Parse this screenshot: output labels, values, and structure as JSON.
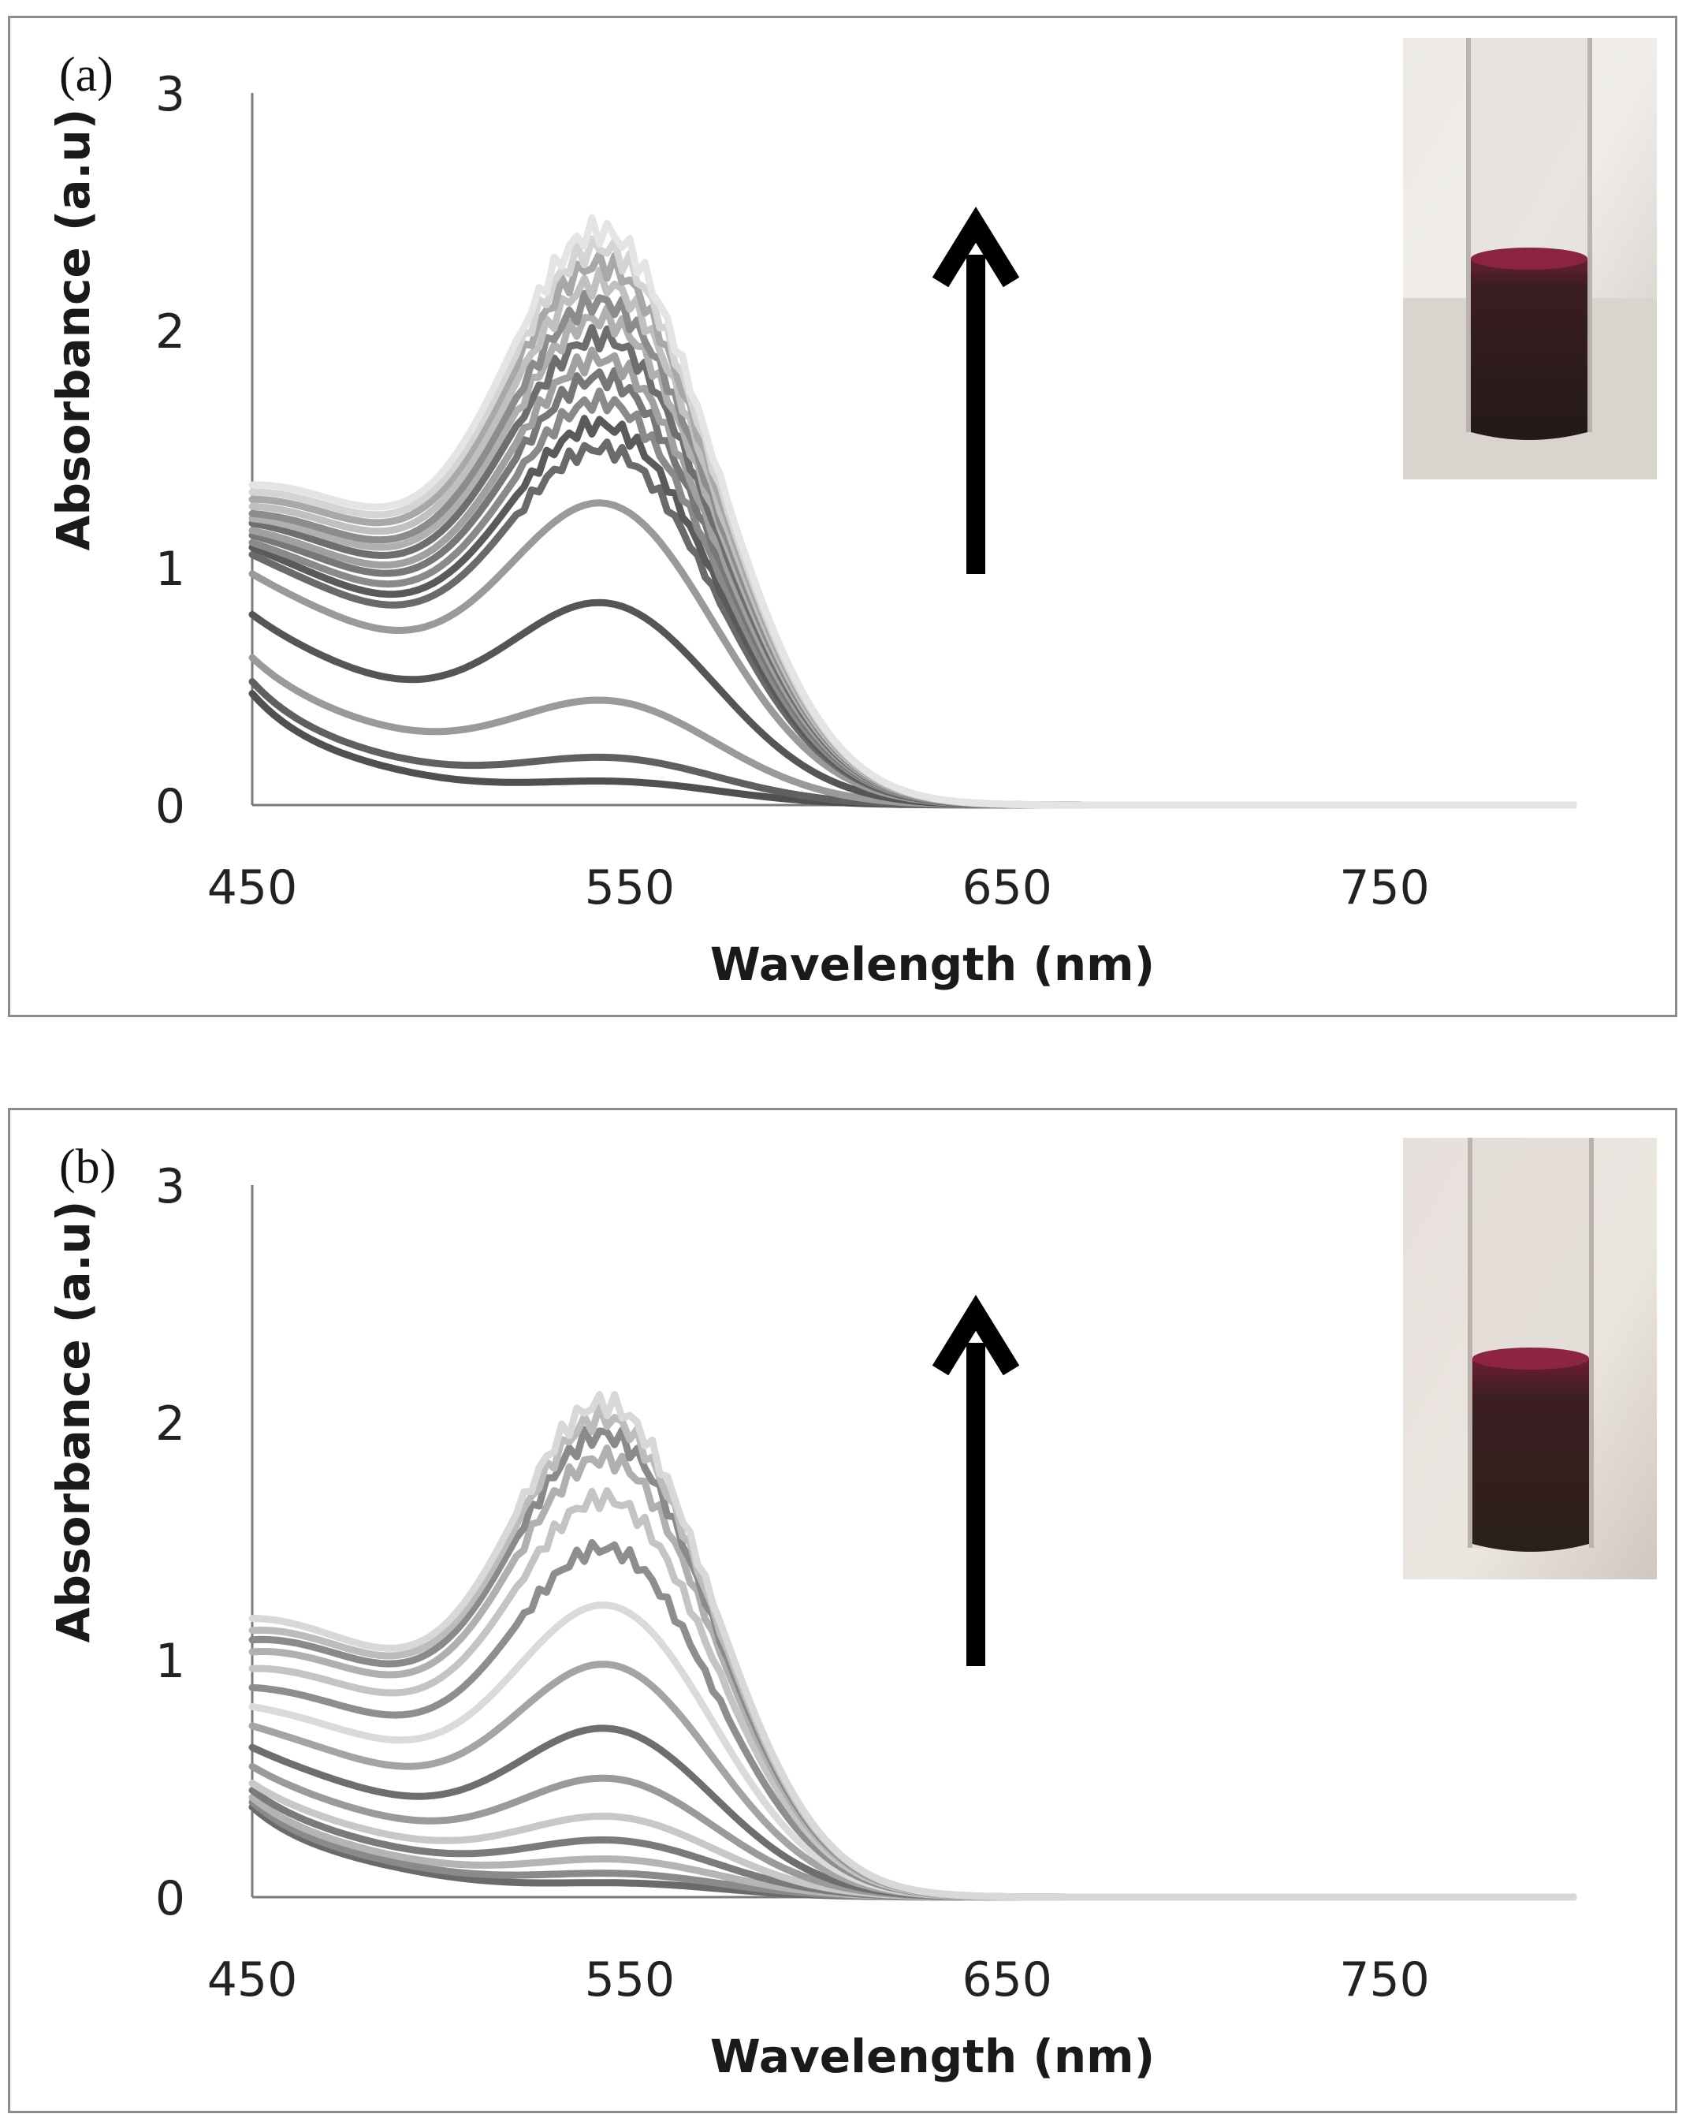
{
  "chart_data": [
    {
      "type": "line",
      "panel_label": "(a)",
      "xlabel": "Wavelength (nm)",
      "ylabel": "Absorbance (a.u)",
      "xlim": [
        450,
        800
      ],
      "ylim": [
        0,
        3
      ],
      "xticks": [
        450,
        550,
        650,
        750
      ],
      "yticks": [
        0,
        1,
        2,
        3
      ],
      "grid": false,
      "annotation": "upward arrow: absorbance increases with time",
      "inset": "photo of vial with dark red-purple colloidal solution",
      "series": [
        {
          "name": "s1",
          "peak": 0.1,
          "value_at_450": 0.47,
          "color": "#505050"
        },
        {
          "name": "s2",
          "peak": 0.2,
          "value_at_450": 0.52,
          "color": "#606060"
        },
        {
          "name": "s3",
          "peak": 0.44,
          "value_at_450": 0.62,
          "color": "#9a9a9a"
        },
        {
          "name": "s4",
          "peak": 0.85,
          "value_at_450": 0.8,
          "color": "#555555"
        },
        {
          "name": "s5",
          "peak": 1.27,
          "value_at_450": 0.97,
          "color": "#9a9a9a"
        },
        {
          "name": "s6",
          "peak": 1.5,
          "value_at_450": 1.05,
          "color": "#6a6a6a"
        },
        {
          "name": "s7",
          "peak": 1.6,
          "value_at_450": 1.08,
          "color": "#5a5a5a"
        },
        {
          "name": "s8",
          "peak": 1.7,
          "value_at_450": 1.1,
          "color": "#8a8a8a"
        },
        {
          "name": "s9",
          "peak": 1.8,
          "value_at_450": 1.13,
          "color": "#777777"
        },
        {
          "name": "s10",
          "peak": 1.88,
          "value_at_450": 1.15,
          "color": "#a0a0a0"
        },
        {
          "name": "s11",
          "peak": 1.97,
          "value_at_450": 1.18,
          "color": "#6e6e6e"
        },
        {
          "name": "s12",
          "peak": 2.05,
          "value_at_450": 1.2,
          "color": "#b0b0b0"
        },
        {
          "name": "s13",
          "peak": 2.12,
          "value_at_450": 1.22,
          "color": "#8c8c8c"
        },
        {
          "name": "s14",
          "peak": 2.2,
          "value_at_450": 1.25,
          "color": "#c0c0c0"
        },
        {
          "name": "s15",
          "peak": 2.28,
          "value_at_450": 1.28,
          "color": "#a8a8a8"
        },
        {
          "name": "s16",
          "peak": 2.35,
          "value_at_450": 1.31,
          "color": "#d4d4d4"
        },
        {
          "name": "s17",
          "peak": 2.42,
          "value_at_450": 1.34,
          "color": "#e4e4e4"
        }
      ]
    },
    {
      "type": "line",
      "panel_label": "(b)",
      "xlabel": "Wavelength (nm)",
      "ylabel": "Absorbance (a.u)",
      "xlim": [
        450,
        800
      ],
      "ylim": [
        0,
        3
      ],
      "xticks": [
        450,
        550,
        650,
        750
      ],
      "yticks": [
        0,
        1,
        2,
        3
      ],
      "grid": false,
      "annotation": "upward arrow: absorbance increases with time",
      "inset": "photo of vial with dark red-purple colloidal solution",
      "series": [
        {
          "name": "s1",
          "peak": 0.06,
          "value_at_450": 0.38,
          "color": "#6a6a6a"
        },
        {
          "name": "s2",
          "peak": 0.1,
          "value_at_450": 0.4,
          "color": "#8a8a8a"
        },
        {
          "name": "s3",
          "peak": 0.16,
          "value_at_450": 0.42,
          "color": "#b4b4b4"
        },
        {
          "name": "s4",
          "peak": 0.24,
          "value_at_450": 0.45,
          "color": "#7a7a7a"
        },
        {
          "name": "s5",
          "peak": 0.34,
          "value_at_450": 0.48,
          "color": "#c8c8c8"
        },
        {
          "name": "s6",
          "peak": 0.5,
          "value_at_450": 0.55,
          "color": "#9a9a9a"
        },
        {
          "name": "s7",
          "peak": 0.71,
          "value_at_450": 0.63,
          "color": "#6e6e6e"
        },
        {
          "name": "s8",
          "peak": 0.98,
          "value_at_450": 0.72,
          "color": "#a4a4a4"
        },
        {
          "name": "s9",
          "peak": 1.23,
          "value_at_450": 0.8,
          "color": "#dadada"
        },
        {
          "name": "s10",
          "peak": 1.47,
          "value_at_450": 0.88,
          "color": "#8e8e8e"
        },
        {
          "name": "s11",
          "peak": 1.68,
          "value_at_450": 0.96,
          "color": "#c4c4c4"
        },
        {
          "name": "s12",
          "peak": 1.85,
          "value_at_450": 1.03,
          "color": "#b0b0b0"
        },
        {
          "name": "s13",
          "peak": 1.95,
          "value_at_450": 1.08,
          "color": "#8a8a8a"
        },
        {
          "name": "s14",
          "peak": 2.02,
          "value_at_450": 1.12,
          "color": "#bcbcbc"
        },
        {
          "name": "s15",
          "peak": 2.08,
          "value_at_450": 1.17,
          "color": "#d8d8d8"
        }
      ]
    }
  ]
}
